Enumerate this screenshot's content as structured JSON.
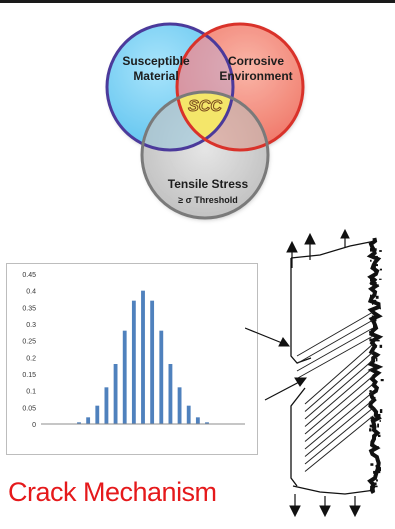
{
  "venn": {
    "circle_1": "Susceptible Material",
    "circle_1_lines": [
      "Susceptible",
      "Material"
    ],
    "circle_2": "Corrosive Environment",
    "circle_2_lines": [
      "Corrosive",
      "Environment"
    ],
    "circle_3_line1": "Tensile Stress",
    "circle_3_line2": "≥ σ Threshold",
    "center": "SCC",
    "colors": {
      "material": "#5ec3ef",
      "environment": "#f06a5a",
      "stress": "#b8b8b8",
      "center": "#f4e66a",
      "material_ring": "#4b3a9b",
      "environment_ring": "#d9322a",
      "stress_ring": "#7a7a7a"
    }
  },
  "chart_data": {
    "type": "bar",
    "x": [
      1,
      2,
      3,
      4,
      5,
      6,
      7,
      8,
      9,
      10,
      11,
      12,
      13,
      14,
      15,
      16,
      17,
      18,
      19,
      20,
      21
    ],
    "values": [
      0.0,
      0.0,
      0.001,
      0.005,
      0.02,
      0.055,
      0.11,
      0.18,
      0.28,
      0.37,
      0.4,
      0.37,
      0.28,
      0.18,
      0.11,
      0.055,
      0.02,
      0.005,
      0.001,
      0.0,
      0.0
    ],
    "ylim": [
      0,
      0.45
    ],
    "yticks": [
      "0",
      "0.05",
      "0.1",
      "0.15",
      "0.2",
      "0.25",
      "0.3",
      "0.35",
      "0.4",
      "0.45"
    ],
    "ytick_values": [
      0,
      0.05,
      0.1,
      0.15,
      0.2,
      0.25,
      0.3,
      0.35,
      0.4,
      0.45
    ],
    "grid": false,
    "bar_color": "#4f81bd"
  },
  "title": "Crack Mechanism"
}
